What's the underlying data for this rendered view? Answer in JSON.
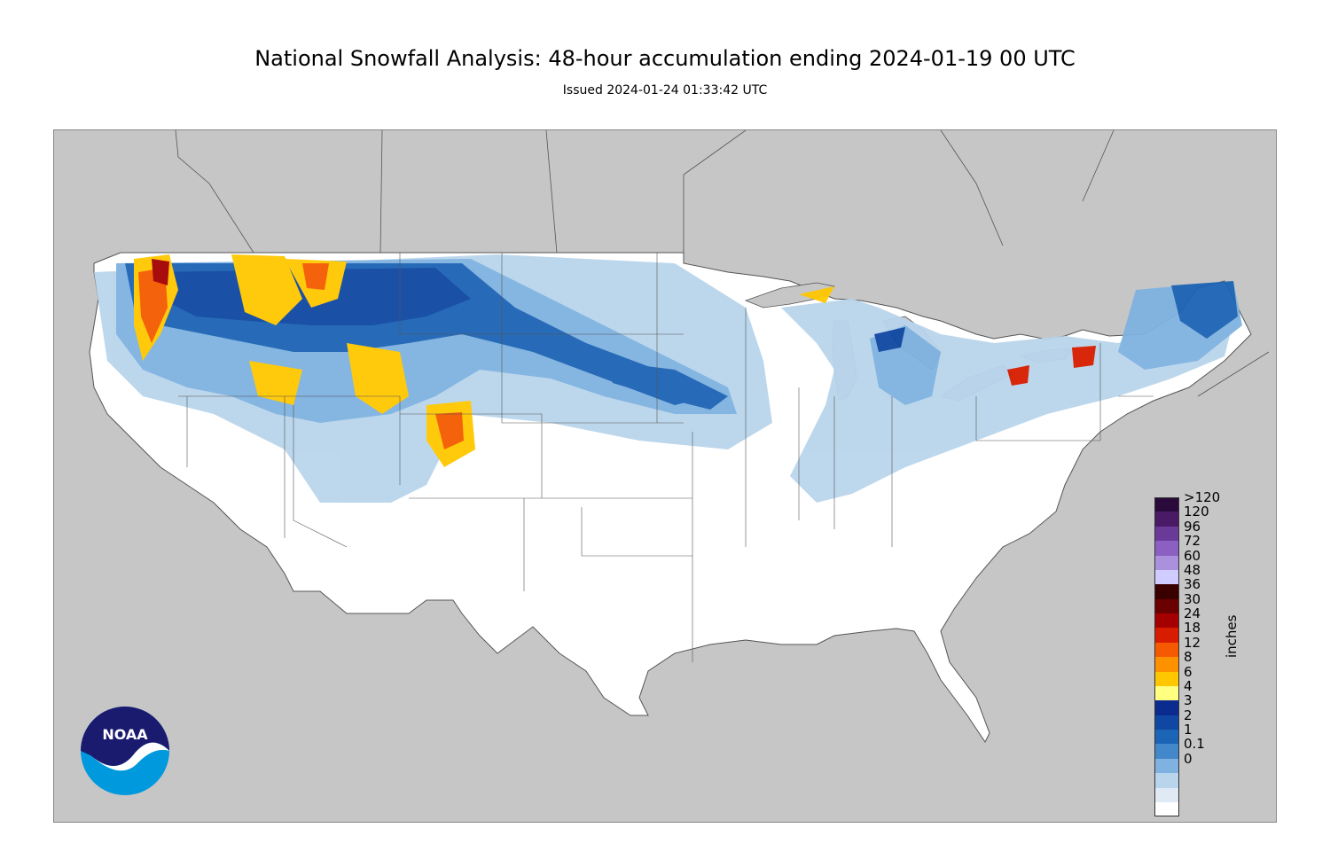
{
  "title": "National Snowfall Analysis: 48-hour accumulation ending 2024-01-19 00 UTC",
  "subtitle": "Issued 2024-01-24 01:33:42 UTC",
  "legend": {
    "units": "inches",
    "bins": [
      {
        "label": ">120",
        "color": "#2a0a3a"
      },
      {
        "label": "120",
        "color": "#4b1a66"
      },
      {
        "label": "96",
        "color": "#6a3a99"
      },
      {
        "label": "72",
        "color": "#8c60c2"
      },
      {
        "label": "60",
        "color": "#aa90dd"
      },
      {
        "label": "48",
        "color": "#d1ccff"
      },
      {
        "label": "36",
        "color": "#3a0000"
      },
      {
        "label": "30",
        "color": "#6b0000"
      },
      {
        "label": "24",
        "color": "#a50000"
      },
      {
        "label": "18",
        "color": "#d81c00"
      },
      {
        "label": "12",
        "color": "#f55a00"
      },
      {
        "label": "8",
        "color": "#fe9100"
      },
      {
        "label": "6",
        "color": "#ffc700"
      },
      {
        "label": "4",
        "color": "#ffff80"
      },
      {
        "label": "3",
        "color": "#0b2b8f"
      },
      {
        "label": "2",
        "color": "#0f47a3"
      },
      {
        "label": "1",
        "color": "#1c64b5"
      },
      {
        "label": "0.1",
        "color": "#4488cc"
      },
      {
        "label": "0",
        "color": "#7fb2e0"
      }
    ],
    "extra_colors": [
      "#b9d5ec",
      "#dfeaf5",
      "#ffffff"
    ]
  },
  "logo": {
    "text": "NOAA"
  },
  "colors": {
    "land": "#ffffff",
    "ocean": "#c6c6c6",
    "borders": "#555555"
  }
}
